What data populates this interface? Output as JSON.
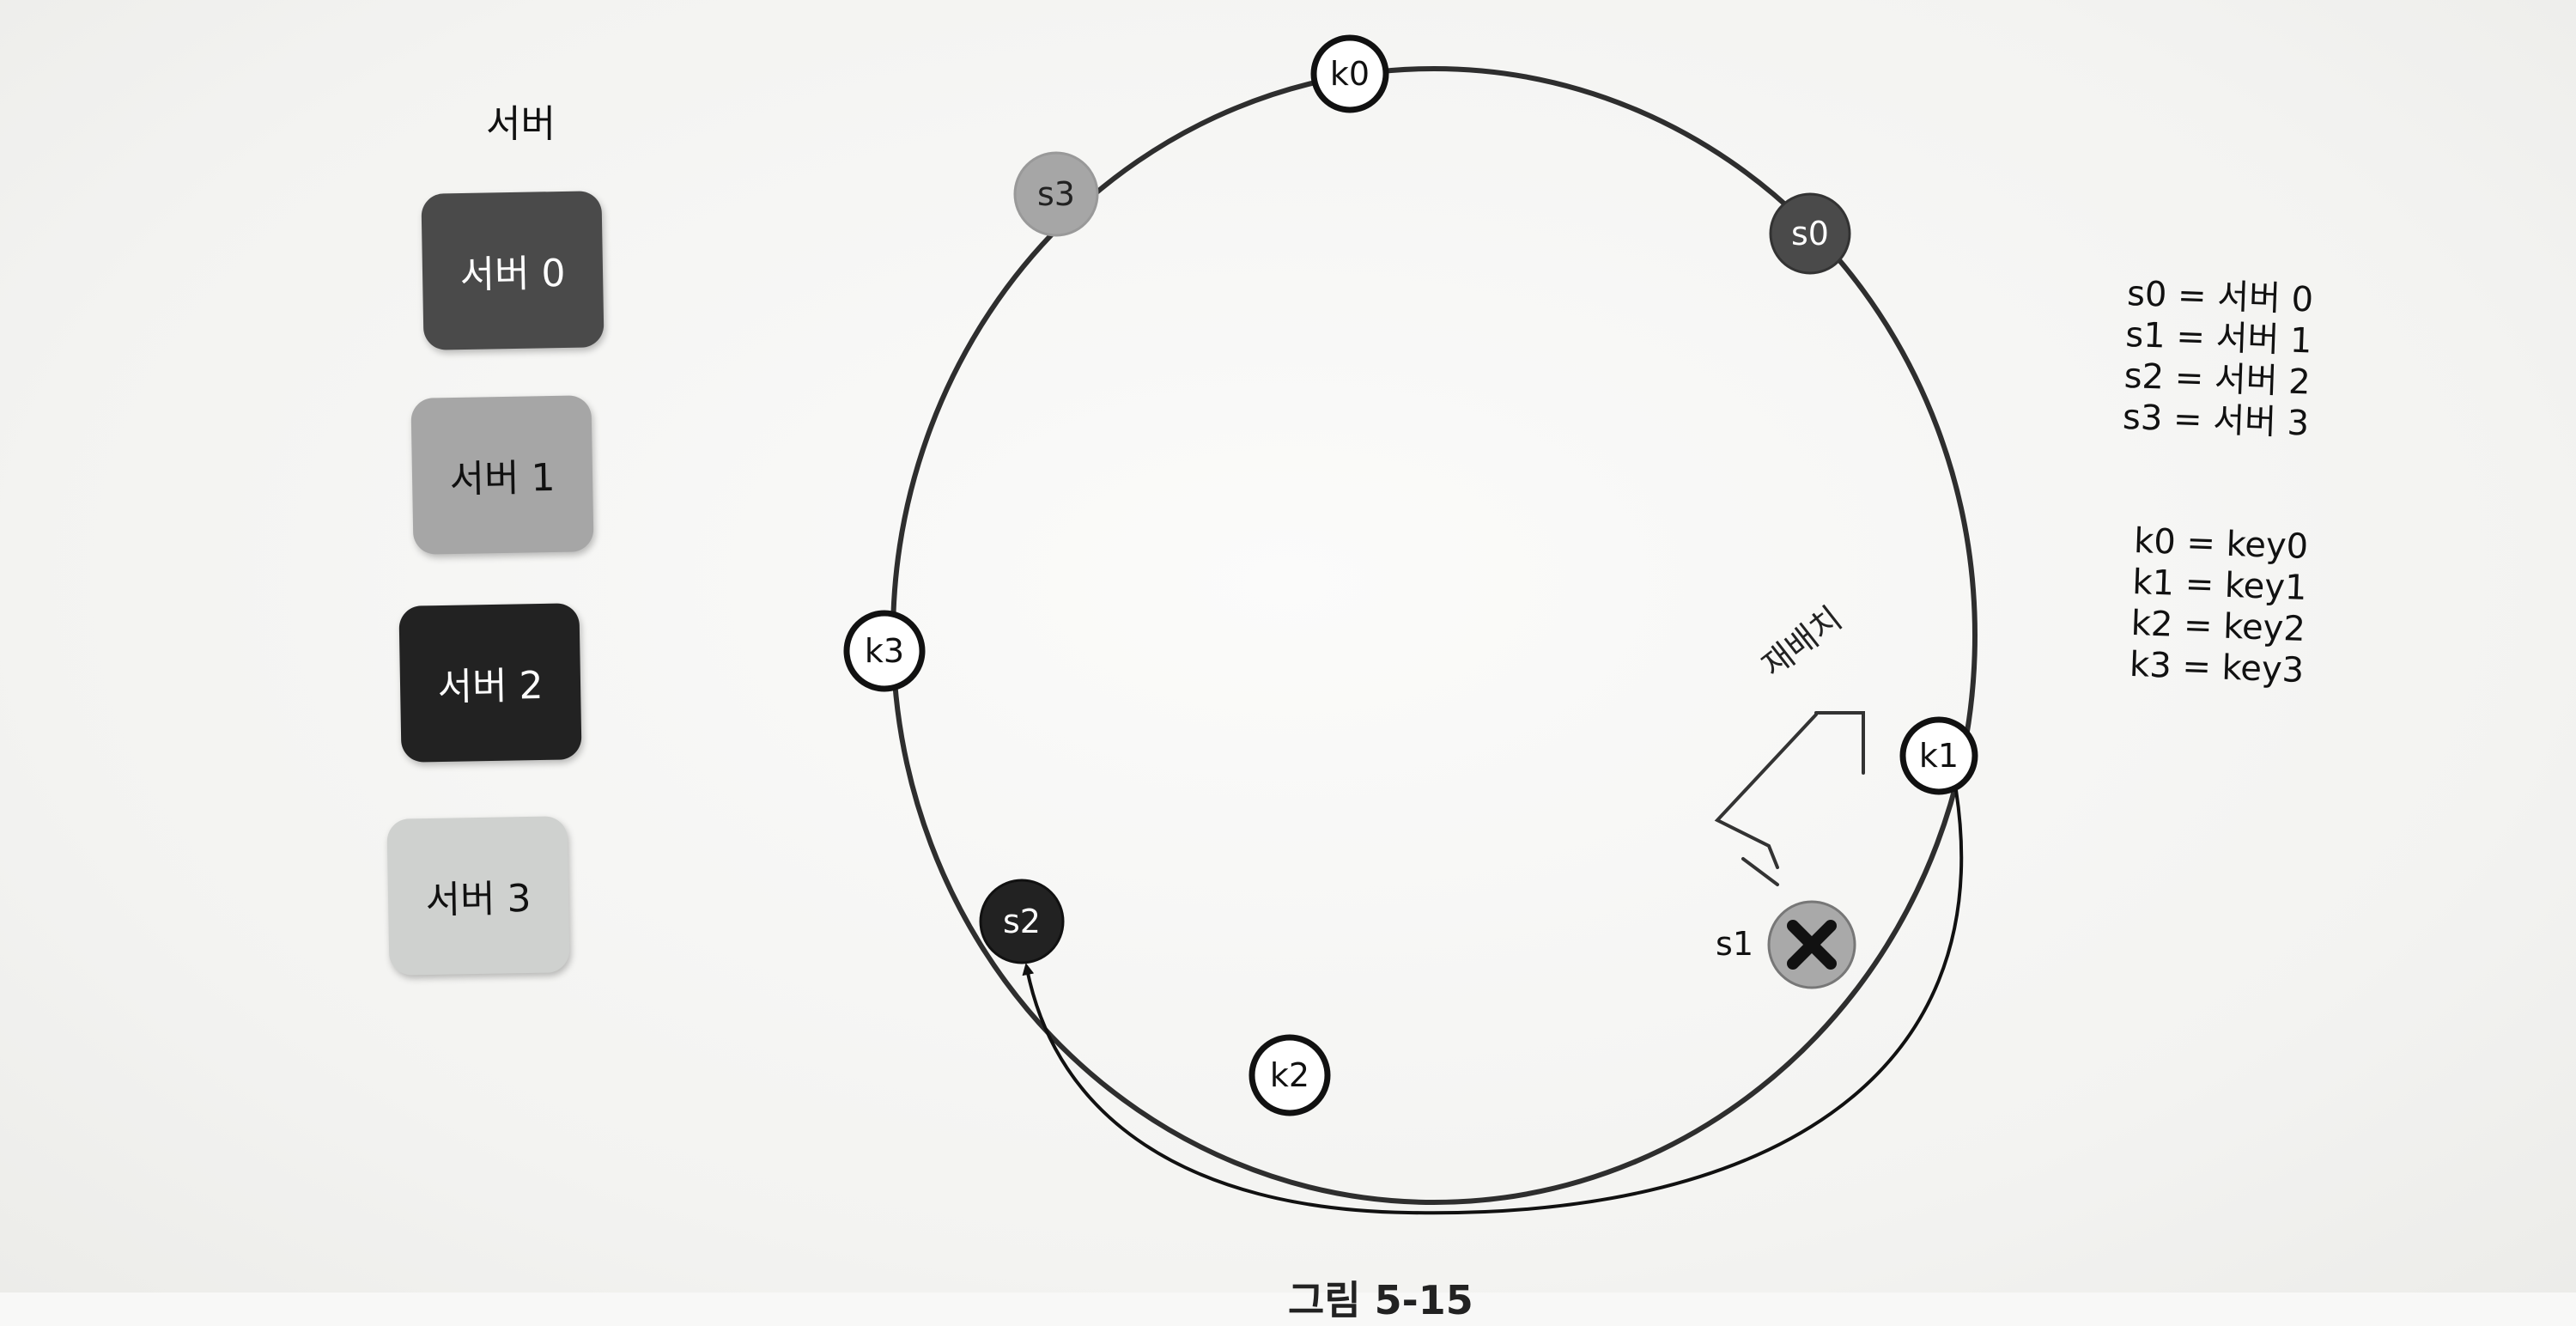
{
  "legend": {
    "title": "서버",
    "servers": [
      {
        "label": "서버 0",
        "color": "#4a4a4a",
        "text_color": "#ffffff"
      },
      {
        "label": "서버 1",
        "color": "#a6a6a6",
        "text_color": "#111111"
      },
      {
        "label": "서버 2",
        "color": "#222222",
        "text_color": "#ffffff"
      },
      {
        "label": "서버 3",
        "color": "#cfd1cf",
        "text_color": "#111111"
      }
    ]
  },
  "ring": {
    "nodes": [
      {
        "label": "k0",
        "kind": "key"
      },
      {
        "label": "s0",
        "kind": "server",
        "color": "#4a4a4a"
      },
      {
        "label": "k1",
        "kind": "key"
      },
      {
        "label": "s1",
        "kind": "server-removed",
        "color": "#a9a9a9",
        "marker": "x-icon"
      },
      {
        "label": "k2",
        "kind": "key"
      },
      {
        "label": "s2",
        "kind": "server",
        "color": "#222222"
      },
      {
        "label": "k3",
        "kind": "key"
      },
      {
        "label": "s3",
        "kind": "server",
        "color": "#a6a6a6"
      }
    ],
    "annotation": "재배치"
  },
  "mappings": {
    "servers": [
      "s0 = 서버 0",
      "s1 = 서버 1",
      "s2 = 서버 2",
      "s3 = 서버 3"
    ],
    "keys": [
      "k0 = key0",
      "k1 = key1",
      "k2 = key2",
      "k3 = key3"
    ]
  },
  "caption": "그림 5-15"
}
